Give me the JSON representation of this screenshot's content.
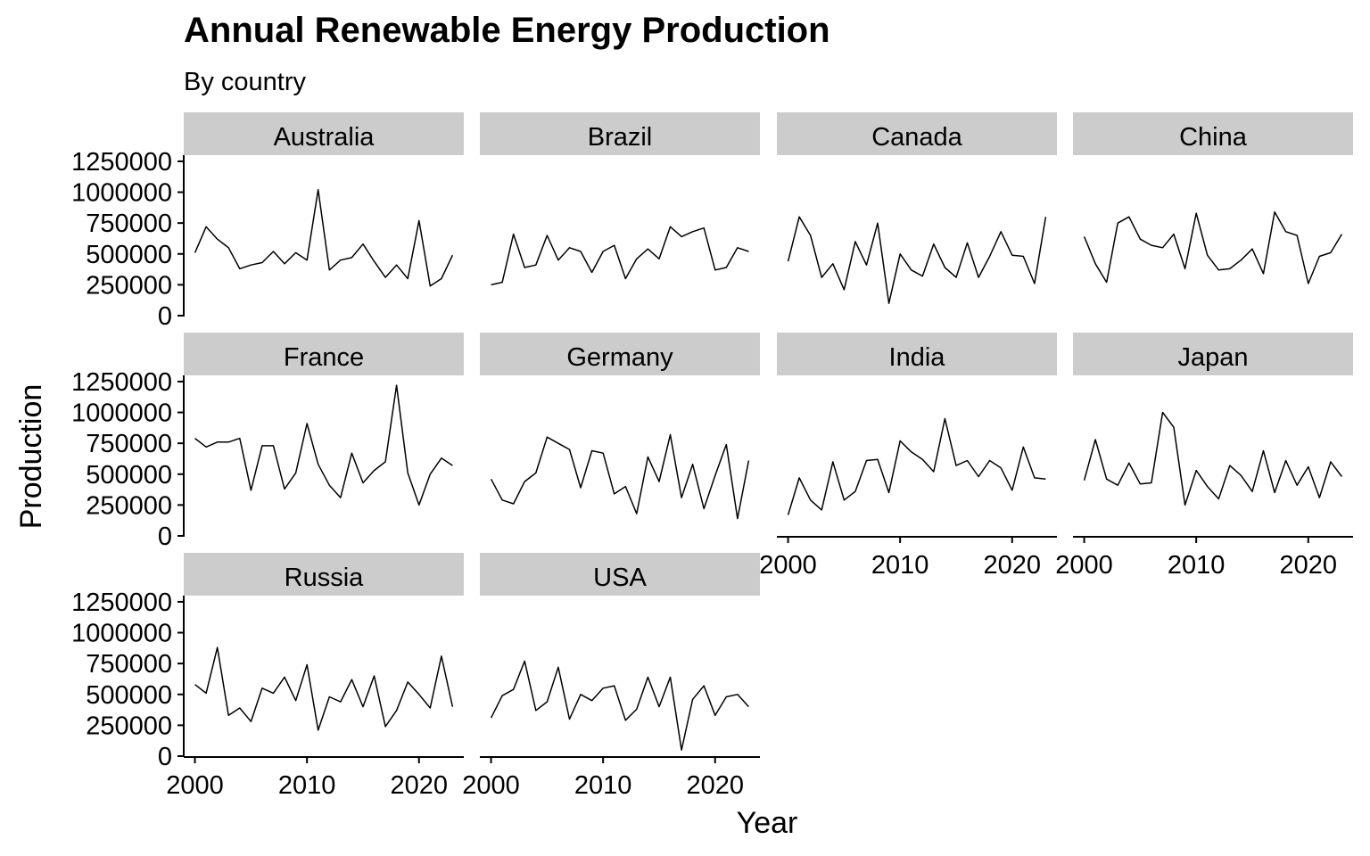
{
  "chart_data": {
    "type": "line",
    "title": "Annual Renewable Energy Production",
    "subtitle": "By country",
    "xlabel": "Year",
    "ylabel": "Production",
    "xlim": [
      1999,
      2024
    ],
    "ylim": [
      0,
      1300000
    ],
    "xticks": [
      2000,
      2010,
      2020
    ],
    "yticks": [
      0,
      250000,
      500000,
      750000,
      1000000,
      1250000
    ],
    "grid": false,
    "legend": "none",
    "line_color": "#000000",
    "strip_color": "#cccccc",
    "x": [
      2000,
      2001,
      2002,
      2003,
      2004,
      2005,
      2006,
      2007,
      2008,
      2009,
      2010,
      2011,
      2012,
      2013,
      2014,
      2015,
      2016,
      2017,
      2018,
      2019,
      2020,
      2021,
      2022,
      2023
    ],
    "panels": [
      {
        "name": "Australia",
        "values": [
          510000,
          720000,
          620000,
          550000,
          380000,
          410000,
          430000,
          520000,
          420000,
          510000,
          450000,
          1020000,
          370000,
          450000,
          470000,
          580000,
          440000,
          310000,
          410000,
          300000,
          770000,
          240000,
          300000,
          490000
        ]
      },
      {
        "name": "Brazil",
        "values": [
          250000,
          270000,
          660000,
          390000,
          410000,
          650000,
          450000,
          550000,
          520000,
          350000,
          520000,
          570000,
          300000,
          460000,
          540000,
          460000,
          720000,
          640000,
          680000,
          710000,
          370000,
          390000,
          550000,
          520000
        ]
      },
      {
        "name": "Canada",
        "values": [
          440000,
          800000,
          650000,
          310000,
          420000,
          210000,
          600000,
          410000,
          750000,
          100000,
          500000,
          370000,
          320000,
          580000,
          390000,
          310000,
          590000,
          310000,
          480000,
          680000,
          490000,
          480000,
          260000,
          800000
        ]
      },
      {
        "name": "China",
        "values": [
          640000,
          420000,
          270000,
          750000,
          800000,
          620000,
          570000,
          550000,
          660000,
          380000,
          830000,
          490000,
          370000,
          380000,
          450000,
          540000,
          340000,
          840000,
          680000,
          650000,
          260000,
          480000,
          510000,
          660000
        ]
      },
      {
        "name": "France",
        "values": [
          790000,
          720000,
          760000,
          760000,
          790000,
          370000,
          730000,
          730000,
          380000,
          510000,
          910000,
          580000,
          410000,
          310000,
          670000,
          430000,
          530000,
          600000,
          1220000,
          510000,
          250000,
          500000,
          630000,
          570000
        ]
      },
      {
        "name": "Germany",
        "values": [
          460000,
          290000,
          260000,
          440000,
          510000,
          800000,
          750000,
          700000,
          390000,
          690000,
          670000,
          340000,
          400000,
          180000,
          640000,
          440000,
          820000,
          310000,
          580000,
          220000,
          490000,
          740000,
          140000,
          610000
        ]
      },
      {
        "name": "India",
        "values": [
          170000,
          470000,
          290000,
          210000,
          600000,
          290000,
          360000,
          610000,
          620000,
          350000,
          770000,
          680000,
          620000,
          520000,
          950000,
          570000,
          610000,
          480000,
          610000,
          550000,
          370000,
          720000,
          470000,
          460000
        ]
      },
      {
        "name": "Japan",
        "values": [
          450000,
          780000,
          460000,
          410000,
          590000,
          420000,
          430000,
          1000000,
          880000,
          250000,
          530000,
          400000,
          300000,
          570000,
          490000,
          360000,
          690000,
          350000,
          610000,
          410000,
          560000,
          310000,
          600000,
          480000
        ]
      },
      {
        "name": "Russia",
        "values": [
          580000,
          510000,
          880000,
          330000,
          390000,
          280000,
          550000,
          510000,
          640000,
          450000,
          740000,
          210000,
          480000,
          440000,
          620000,
          400000,
          650000,
          240000,
          370000,
          600000,
          500000,
          390000,
          810000,
          400000
        ]
      },
      {
        "name": "USA",
        "values": [
          310000,
          490000,
          540000,
          770000,
          370000,
          440000,
          720000,
          300000,
          500000,
          450000,
          550000,
          570000,
          290000,
          380000,
          640000,
          400000,
          640000,
          50000,
          460000,
          570000,
          330000,
          480000,
          500000,
          400000
        ]
      }
    ]
  }
}
